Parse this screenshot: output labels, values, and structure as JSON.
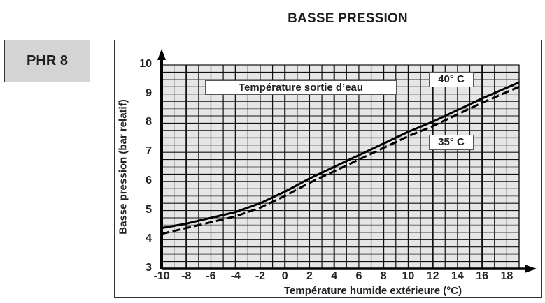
{
  "header": {
    "title": "BASSE PRESSION"
  },
  "model": {
    "label": "PHR 8"
  },
  "legend": {
    "title": "Température sortie d’eau",
    "series_40": "40° C",
    "series_35": "35° C"
  },
  "axes": {
    "ylabel": "Basse pression  (bar relatif)",
    "xlabel": "Température humide extérieure  (°C)",
    "yticks": [
      "10",
      "9",
      "8",
      "7",
      "6",
      "5",
      "4",
      "3"
    ],
    "xticks": [
      "-10",
      "-8",
      "-6",
      "-4",
      "-2",
      "0",
      "2",
      "4",
      "6",
      "8",
      "10",
      "12",
      "14",
      "16",
      "18"
    ]
  },
  "colors": {
    "grid_bg": "#e6e6e6",
    "grid_line": "#111111",
    "grid_minor": "#8a8a8a",
    "line": "#000000",
    "box_bg": "#d4d4d4"
  },
  "chart_data": {
    "type": "line",
    "title": "BASSE PRESSION",
    "subtitle": "PHR 8",
    "xlabel": "Température humide extérieure (°C)",
    "ylabel": "Basse pression (bar relatif)",
    "xlim": [
      -10,
      19
    ],
    "ylim": [
      3,
      10
    ],
    "grid": true,
    "legend_title": "Température sortie d’eau",
    "x": [
      -10,
      -8,
      -6,
      -4,
      -3,
      -2,
      0,
      2,
      4,
      6,
      8,
      10,
      12,
      14,
      16,
      19
    ],
    "series": [
      {
        "name": "40° C",
        "style": "solid",
        "values": [
          4.4,
          4.55,
          4.75,
          4.95,
          5.1,
          5.25,
          5.65,
          6.1,
          6.5,
          6.9,
          7.3,
          7.7,
          8.05,
          8.45,
          8.85,
          9.4
        ]
      },
      {
        "name": "35° C",
        "style": "dashed",
        "values": [
          4.2,
          4.4,
          4.6,
          4.8,
          4.95,
          5.1,
          5.5,
          5.95,
          6.35,
          6.75,
          7.15,
          7.55,
          7.9,
          8.3,
          8.7,
          9.25
        ]
      }
    ]
  }
}
